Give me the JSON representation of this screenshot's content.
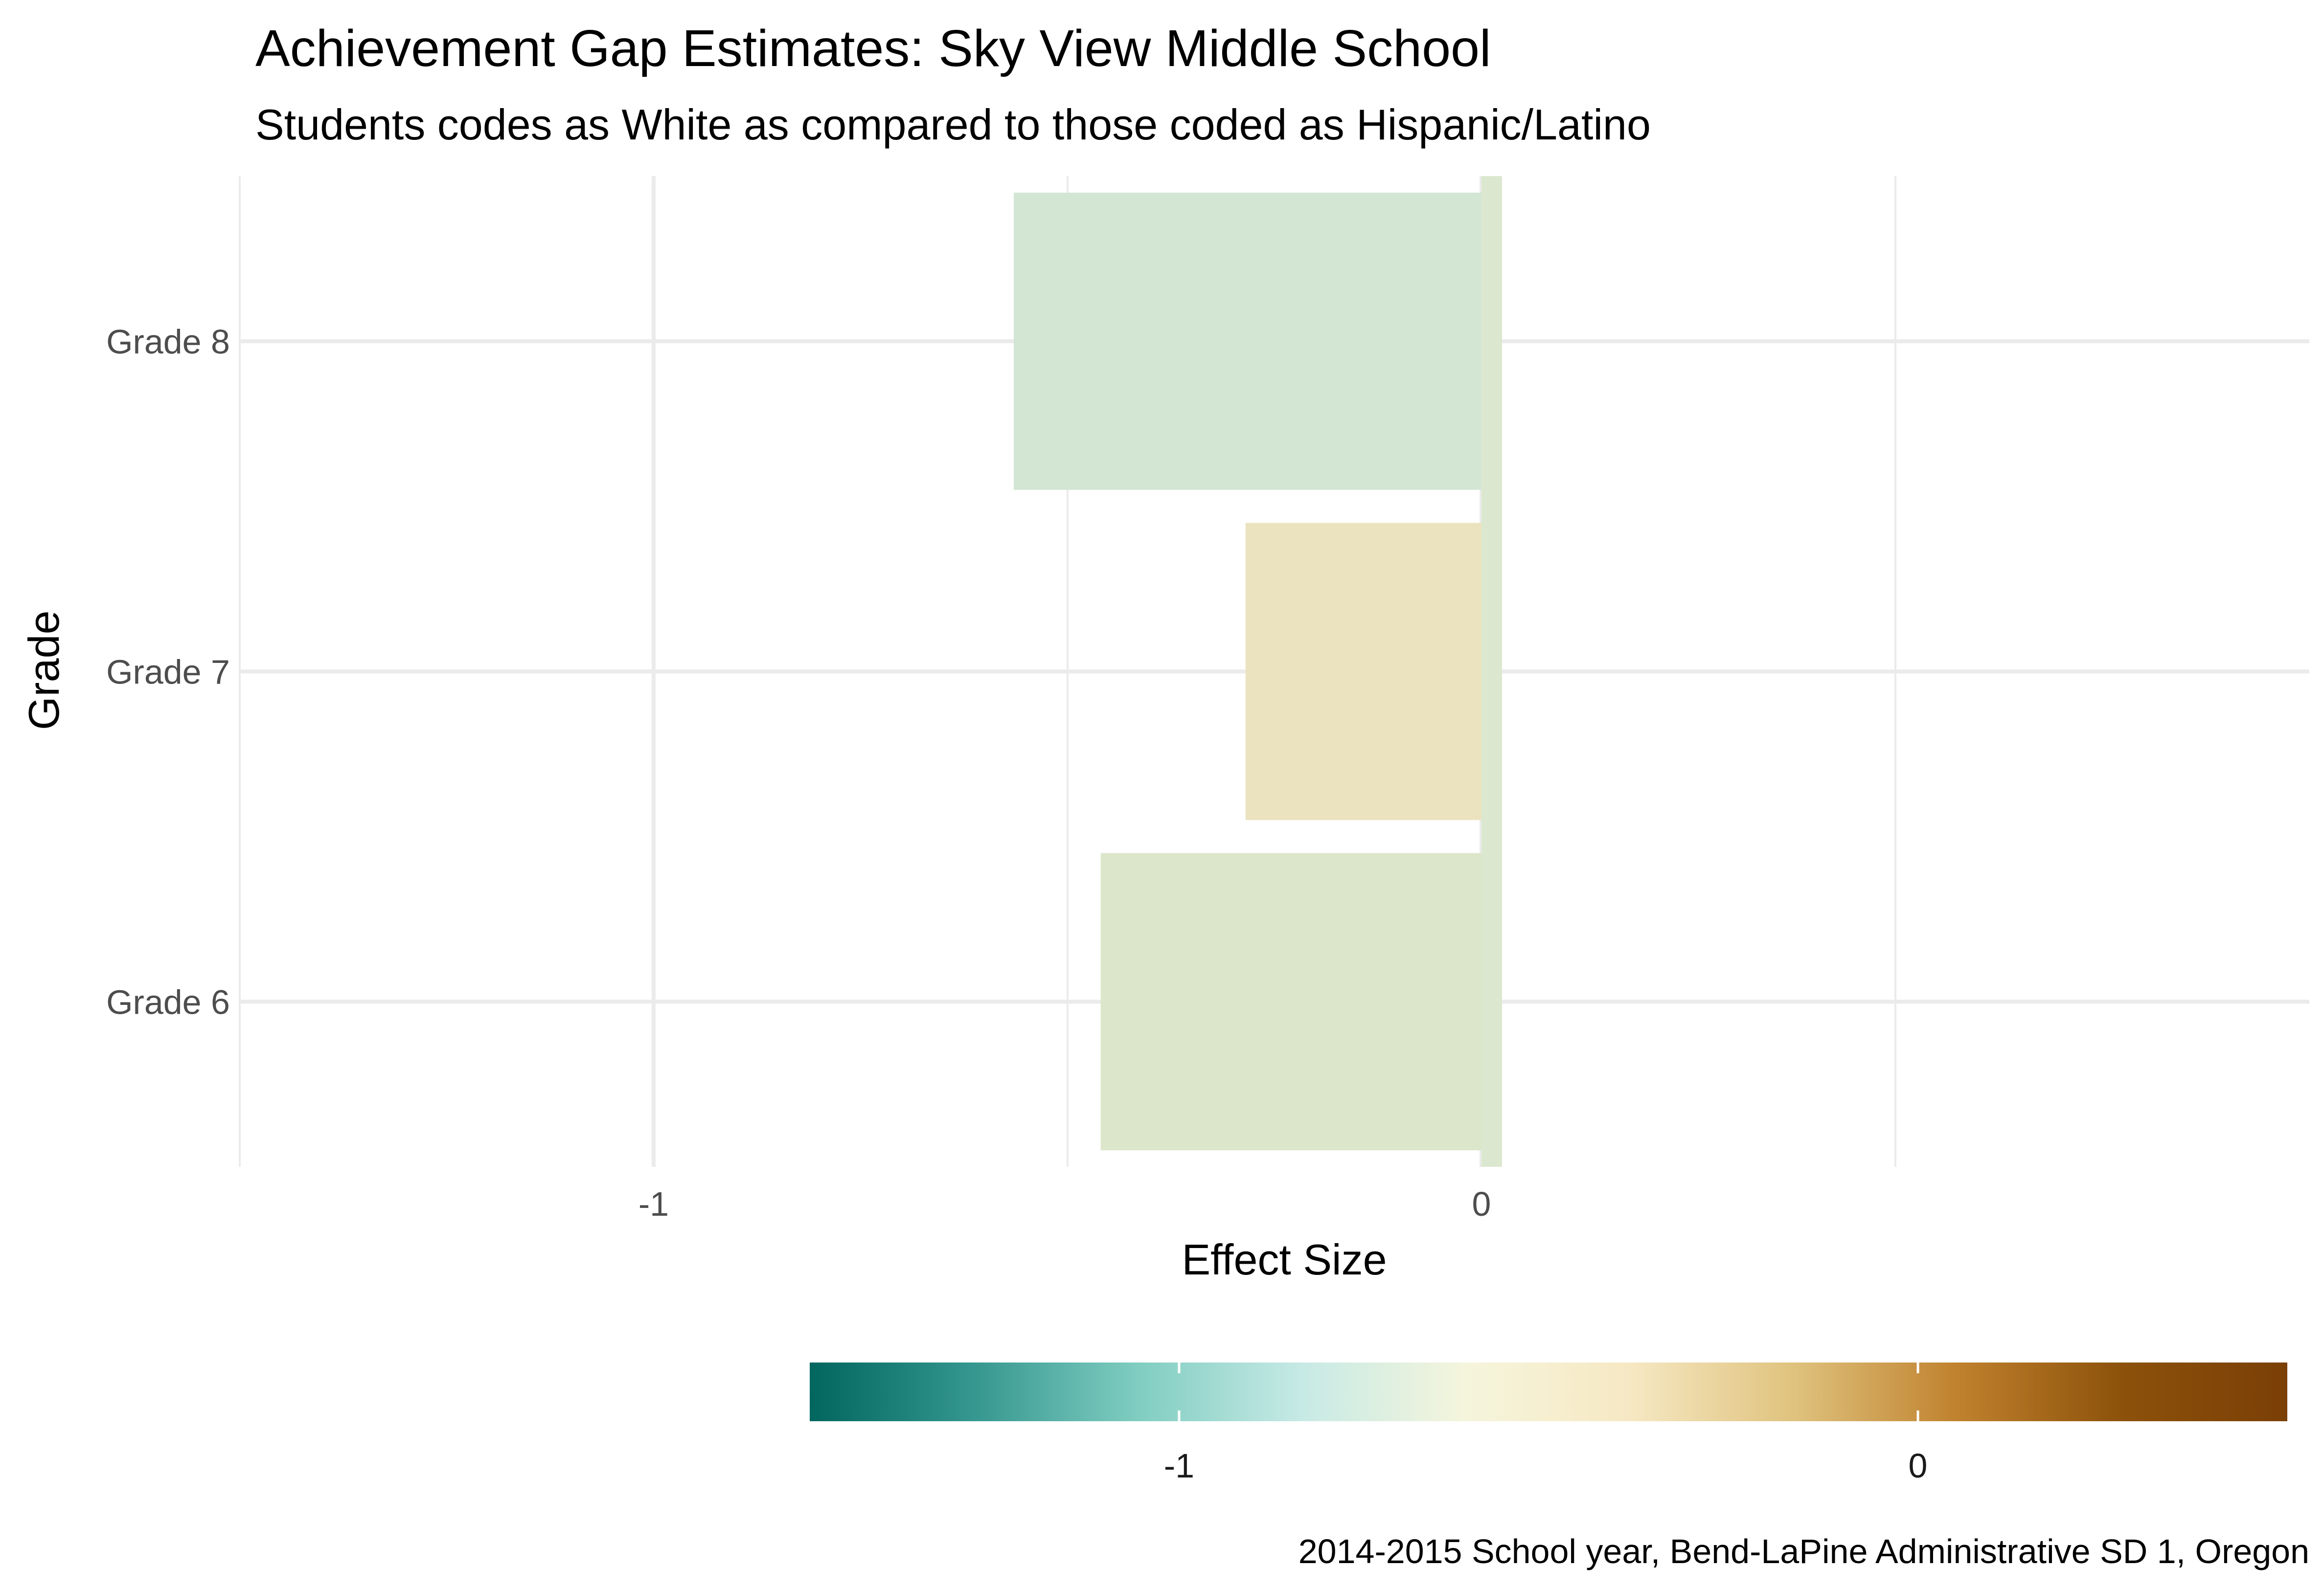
{
  "chart_data": {
    "type": "bar",
    "orientation": "horizontal",
    "title": "Achievement Gap Estimates: Sky View Middle School",
    "subtitle": "Students codes as White as compared to those coded as Hispanic/Latino",
    "xlabel": "Effect Size",
    "ylabel": "Grade",
    "caption": "2014-2015 School year, Bend-LaPine Administrative SD 1, Oregon",
    "categories": [
      "Grade 6",
      "Grade 7",
      "Grade 8"
    ],
    "values": [
      -0.46,
      -0.285,
      -0.565
    ],
    "bar_colors": [
      "#dce6cb",
      "#ebe3bf",
      "#d3e5d3"
    ],
    "xlim": [
      -1.5,
      1.0
    ],
    "x_ticks": [
      {
        "value": -1,
        "label": "-1"
      },
      {
        "value": 0,
        "label": "0"
      }
    ],
    "x_minor_grid": [
      -1.5,
      -0.5,
      0.5
    ],
    "zero_line": {
      "value": 0,
      "color": "#dbe8cf"
    },
    "grid": true,
    "legend": {
      "type": "colorbar",
      "placement": "bottom",
      "range": [
        -1.5,
        0.5
      ],
      "palette": [
        "#01665e",
        "#35978f",
        "#80cdc1",
        "#c7eae5",
        "#f5f5dc",
        "#f6e8c3",
        "#dfc27d",
        "#bf812d",
        "#8c510a",
        "#7a3f06"
      ],
      "ticks": [
        {
          "value": -1,
          "label": "-1"
        },
        {
          "value": 0,
          "label": "0"
        }
      ]
    }
  }
}
